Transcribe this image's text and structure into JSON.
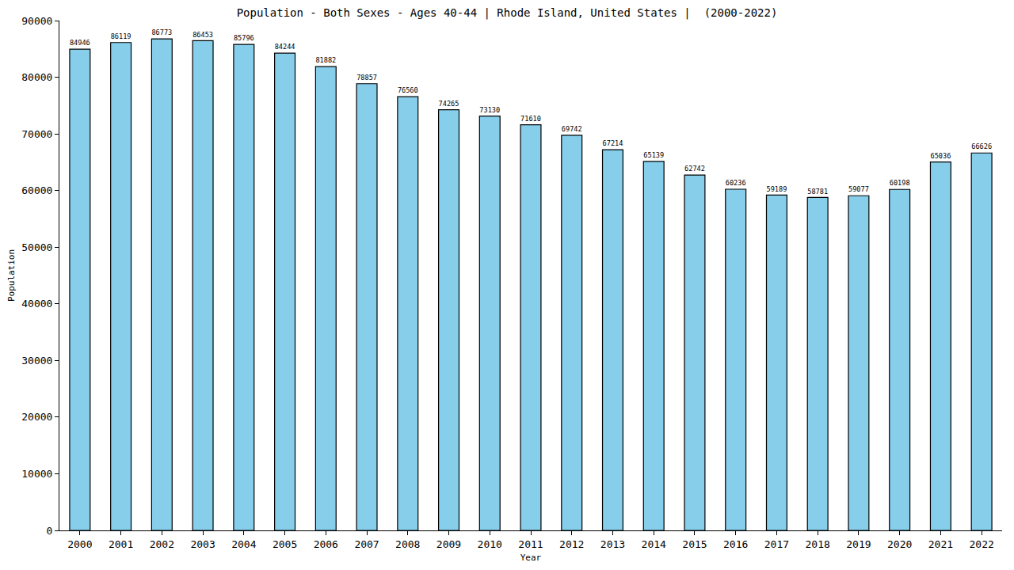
{
  "chart_data": {
    "type": "bar",
    "title": "Population - Both Sexes - Ages 40-44 | Rhode Island, United States |  (2000-2022)",
    "x_label": "Year",
    "y_label": "Population",
    "categories": [
      "2000",
      "2001",
      "2002",
      "2003",
      "2004",
      "2005",
      "2006",
      "2007",
      "2008",
      "2009",
      "2010",
      "2011",
      "2012",
      "2013",
      "2014",
      "2015",
      "2016",
      "2017",
      "2018",
      "2019",
      "2020",
      "2021",
      "2022"
    ],
    "values": [
      84946,
      86119,
      86773,
      86453,
      85796,
      84244,
      81882,
      78857,
      76560,
      74265,
      73130,
      71610,
      69742,
      67214,
      65139,
      62742,
      60236,
      59189,
      58781,
      59077,
      60198,
      65036,
      66626
    ],
    "color": "#87ceeb",
    "ylim": [
      0,
      90000
    ],
    "yticks": [
      0,
      10000,
      20000,
      30000,
      40000,
      50000,
      60000,
      70000,
      80000,
      90000
    ],
    "grid": false,
    "data_labels": true
  }
}
